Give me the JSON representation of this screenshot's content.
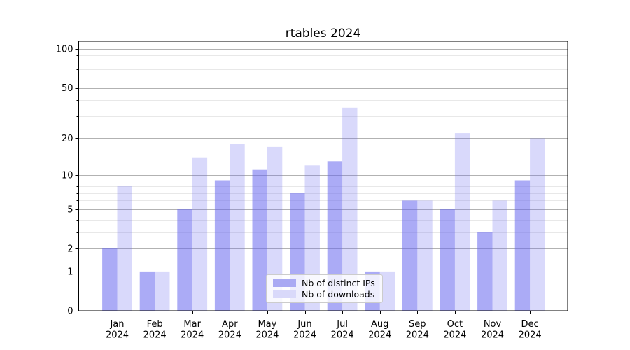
{
  "title": "rtables 2024",
  "colors": {
    "bar_base": "#6666ee",
    "distinct_ips_fill": "rgba(102,102,238,0.55)",
    "downloads_fill": "rgba(102,102,238,0.25)",
    "distinct_ips_hex": "#a9a9f3",
    "downloads_hex": "#d9d9fa",
    "grid_major": "#b2b2b2",
    "grid_minor": "#e8e8e8",
    "axis": "#000000",
    "background": "#ffffff"
  },
  "legend": {
    "items": [
      {
        "label": "Nb of distinct IPs"
      },
      {
        "label": "Nb of downloads"
      }
    ]
  },
  "chart_data": {
    "type": "bar",
    "title": "rtables 2024",
    "categories": [
      "Jan 2024",
      "Feb 2024",
      "Mar 2024",
      "Apr 2024",
      "May 2024",
      "Jun 2024",
      "Jul 2024",
      "Aug 2024",
      "Sep 2024",
      "Oct 2024",
      "Nov 2024",
      "Dec 2024"
    ],
    "series": [
      {
        "name": "Nb of distinct IPs",
        "values": [
          2,
          1,
          5,
          9,
          11,
          7,
          13,
          1,
          6,
          5,
          3,
          9
        ]
      },
      {
        "name": "Nb of downloads",
        "values": [
          8,
          1,
          14,
          18,
          17,
          12,
          35,
          1,
          6,
          22,
          6,
          20
        ]
      }
    ],
    "xlabel": "",
    "ylabel": "",
    "yscale": "log1p",
    "ylim": [
      0,
      115
    ],
    "y_major_ticks": [
      0,
      1,
      2,
      5,
      10,
      20,
      50,
      100
    ],
    "y_minor_ticks": [
      3,
      4,
      6,
      7,
      8,
      9,
      30,
      40,
      60,
      70,
      80,
      90
    ],
    "grid": true,
    "legend_position": "lower center"
  }
}
